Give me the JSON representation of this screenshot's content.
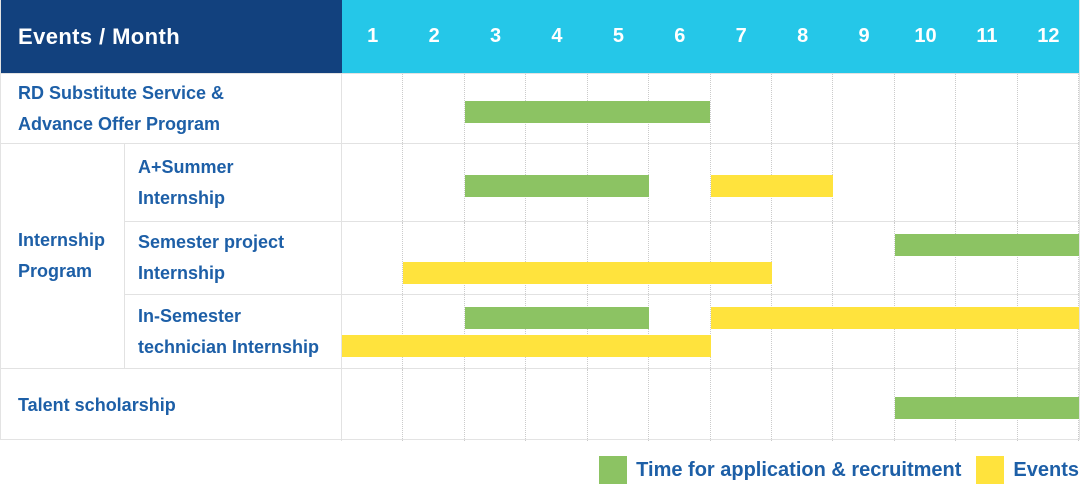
{
  "header": {
    "title": "Events / Month",
    "months": [
      "1",
      "2",
      "3",
      "4",
      "5",
      "6",
      "7",
      "8",
      "9",
      "10",
      "11",
      "12"
    ]
  },
  "labels": {
    "rd": "RD Substitute Service &\nAdvance Offer Program",
    "group": "Internship\nProgram",
    "a_summer": "A+Summer\nInternship",
    "semester_project": "Semester project\nInternship",
    "in_semester": "In-Semester\ntechnician Internship",
    "talent": "Talent scholarship"
  },
  "legend": {
    "application": "Time for application & recruitment",
    "events": "Events"
  },
  "colors": {
    "header_navy": "#12417E",
    "header_cyan": "#25C7E8",
    "bar_green": "#8CC363",
    "bar_yellow": "#FFE33D",
    "label_blue": "#1D5FA7"
  },
  "chart_data": {
    "type": "gantt",
    "title": "Events / Month",
    "x": {
      "unit": "month",
      "ticks": [
        1,
        2,
        3,
        4,
        5,
        6,
        7,
        8,
        9,
        10,
        11,
        12
      ],
      "range": [
        1,
        12
      ]
    },
    "grid": true,
    "legend_position": "bottom-right",
    "legend": [
      {
        "name": "Time for application & recruitment",
        "color": "#8CC363"
      },
      {
        "name": "Events",
        "color": "#FFE33D"
      }
    ],
    "rows": [
      {
        "group": "",
        "label": "RD Substitute Service & Advance Offer Program",
        "lanes": 1,
        "bars": [
          {
            "series": "Time for application & recruitment",
            "color": "green",
            "start_month": 3,
            "end_month": 6,
            "lane": 1
          }
        ]
      },
      {
        "group": "Internship Program",
        "label": "A+Summer Internship",
        "lanes": 1,
        "bars": [
          {
            "series": "Time for application & recruitment",
            "color": "green",
            "start_month": 3,
            "end_month": 5,
            "lane": 1
          },
          {
            "series": "Events",
            "color": "yellow",
            "start_month": 7,
            "end_month": 8,
            "lane": 1
          }
        ]
      },
      {
        "group": "Internship Program",
        "label": "Semester project Internship",
        "lanes": 2,
        "bars": [
          {
            "series": "Time for application & recruitment",
            "color": "green",
            "start_month": 10,
            "end_month": 12,
            "lane": 1
          },
          {
            "series": "Events",
            "color": "yellow",
            "start_month": 2,
            "end_month": 7,
            "lane": 2
          }
        ]
      },
      {
        "group": "Internship Program",
        "label": "In-Semester technician Internship",
        "lanes": 2,
        "bars": [
          {
            "series": "Time for application & recruitment",
            "color": "green",
            "start_month": 3,
            "end_month": 5,
            "lane": 1
          },
          {
            "series": "Events",
            "color": "yellow",
            "start_month": 7,
            "end_month": 12,
            "lane": 1
          },
          {
            "series": "Events",
            "color": "yellow",
            "start_month": 1,
            "end_month": 6,
            "lane": 2
          }
        ]
      },
      {
        "group": "",
        "label": "Talent scholarship",
        "lanes": 1,
        "bars": [
          {
            "series": "Time for application & recruitment",
            "color": "green",
            "start_month": 10,
            "end_month": 12,
            "lane": 1
          }
        ]
      }
    ]
  }
}
